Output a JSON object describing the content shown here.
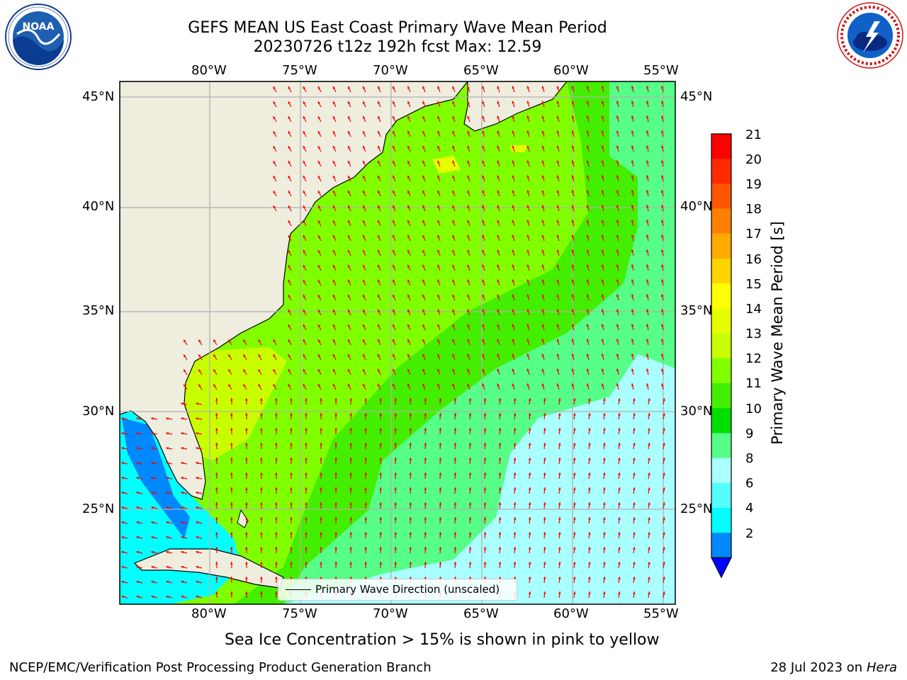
{
  "title": {
    "line1": "GEFS MEAN US East Coast Primary Wave Mean Period",
    "line2": "20230726 t12z 192h fcst   Max: 12.59"
  },
  "map": {
    "lon_ticks": [
      "80°W",
      "75°W",
      "70°W",
      "65°W",
      "60°W",
      "55°W"
    ],
    "lat_ticks": [
      "45°N",
      "40°N",
      "35°N",
      "30°N",
      "25°N"
    ],
    "colors": {
      "land": "#efedde",
      "grid": "#b0b0b0",
      "arrow": "#ff0000",
      "coast": "#000000"
    }
  },
  "colorbar": {
    "label": "Primary Wave Mean Period [s]",
    "ticks": [
      "21",
      "20",
      "19",
      "18",
      "17",
      "16",
      "15",
      "14",
      "13",
      "12",
      "11",
      "10",
      "9",
      "8",
      "6",
      "4",
      "2"
    ],
    "colors": [
      "#ff0000",
      "#ff2a00",
      "#ff5500",
      "#ff8000",
      "#ffaa00",
      "#ffd400",
      "#ffff00",
      "#e6ff00",
      "#c8ff00",
      "#80ff00",
      "#44ee00",
      "#00dd00",
      "#55ff88",
      "#aaffff",
      "#55ffff",
      "#00ffff",
      "#0088ff"
    ],
    "under_color": "#0000ff"
  },
  "legend": {
    "label": "Primary Wave Direction (unscaled)"
  },
  "subtitle": "Sea Ice Concentration > 15% is shown in pink to yellow",
  "footer": {
    "left": "NCEP/EMC/Verification Post Processing Product Generation Branch",
    "date": "28 Jul 2023 on",
    "host": "Hera"
  },
  "logos": {
    "noaa": "NOAA",
    "nws": "NATIONAL WEATHER SERVICE"
  }
}
